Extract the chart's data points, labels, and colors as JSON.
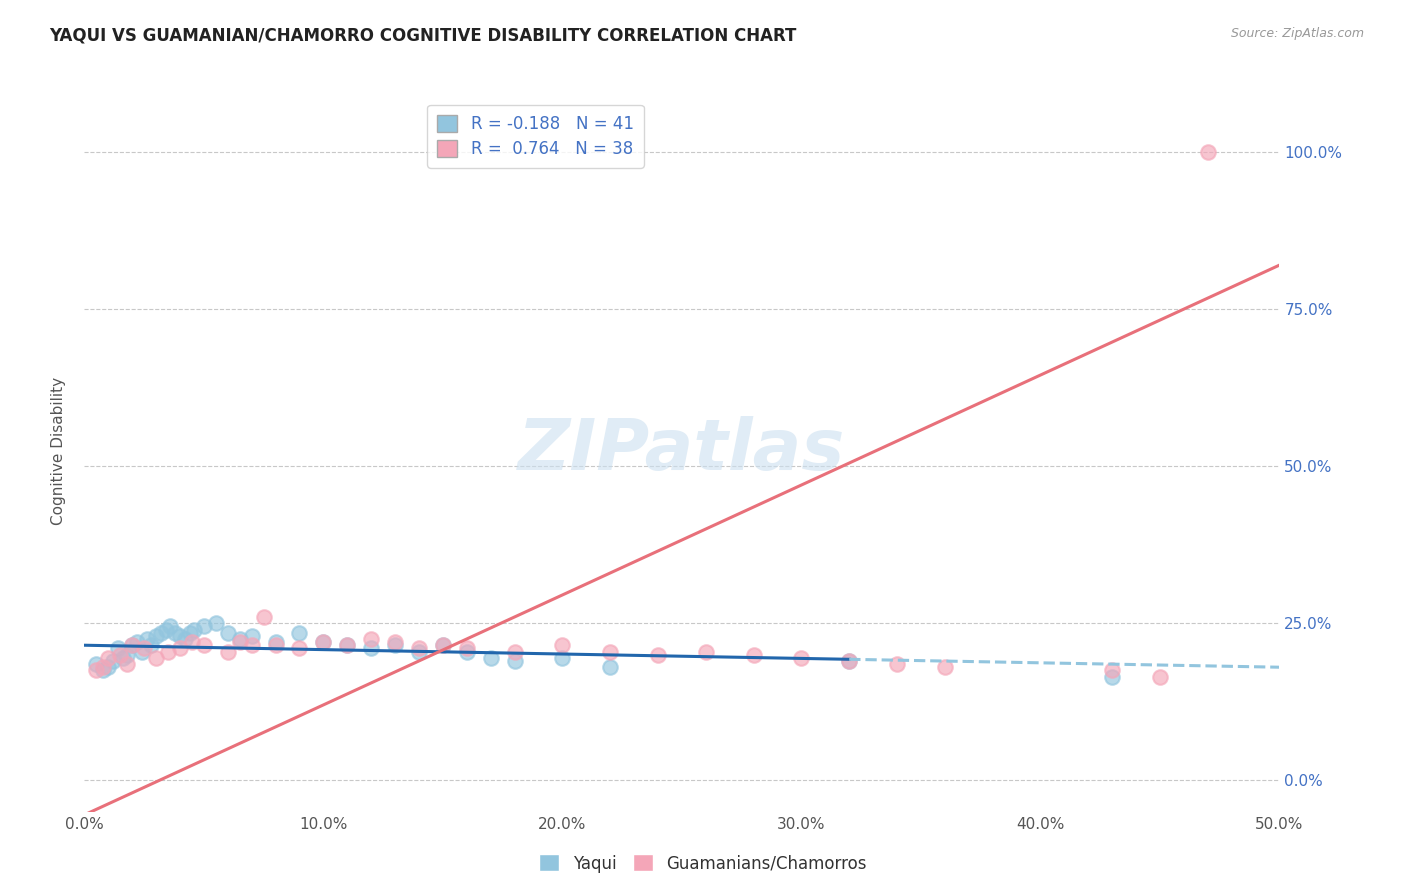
{
  "title": "YAQUI VS GUAMANIAN/CHAMORRO COGNITIVE DISABILITY CORRELATION CHART",
  "source": "Source: ZipAtlas.com",
  "ylabel": "Cognitive Disability",
  "xlim": [
    0.0,
    0.5
  ],
  "ylim": [
    -0.05,
    1.1
  ],
  "ytick_labels": [
    "0.0%",
    "25.0%",
    "50.0%",
    "75.0%",
    "100.0%"
  ],
  "ytick_values": [
    0.0,
    0.25,
    0.5,
    0.75,
    1.0
  ],
  "xtick_labels": [
    "0.0%",
    "10.0%",
    "20.0%",
    "30.0%",
    "40.0%",
    "50.0%"
  ],
  "xtick_values": [
    0.0,
    0.1,
    0.2,
    0.3,
    0.4,
    0.5
  ],
  "legend_labels": [
    "Yaqui",
    "Guamanians/Chamorros"
  ],
  "blue_color": "#92c5de",
  "pink_color": "#f4a6b8",
  "blue_line_color": "#2166ac",
  "pink_line_color": "#e8707a",
  "blue_line_dash_color": "#92c5de",
  "R_blue": -0.188,
  "N_blue": 41,
  "R_pink": 0.764,
  "N_pink": 38,
  "blue_scatter_x": [
    0.005,
    0.008,
    0.01,
    0.012,
    0.014,
    0.016,
    0.018,
    0.02,
    0.022,
    0.024,
    0.026,
    0.028,
    0.03,
    0.032,
    0.034,
    0.036,
    0.038,
    0.04,
    0.042,
    0.044,
    0.046,
    0.05,
    0.055,
    0.06,
    0.065,
    0.07,
    0.08,
    0.09,
    0.1,
    0.11,
    0.12,
    0.13,
    0.14,
    0.15,
    0.16,
    0.17,
    0.18,
    0.2,
    0.22,
    0.32,
    0.43
  ],
  "blue_scatter_y": [
    0.185,
    0.175,
    0.18,
    0.19,
    0.21,
    0.195,
    0.2,
    0.215,
    0.22,
    0.205,
    0.225,
    0.215,
    0.23,
    0.235,
    0.24,
    0.245,
    0.235,
    0.23,
    0.225,
    0.235,
    0.24,
    0.245,
    0.25,
    0.235,
    0.225,
    0.23,
    0.22,
    0.235,
    0.22,
    0.215,
    0.21,
    0.215,
    0.205,
    0.215,
    0.205,
    0.195,
    0.19,
    0.195,
    0.18,
    0.19,
    0.165
  ],
  "pink_scatter_x": [
    0.005,
    0.008,
    0.01,
    0.015,
    0.018,
    0.02,
    0.025,
    0.03,
    0.035,
    0.04,
    0.045,
    0.05,
    0.06,
    0.065,
    0.07,
    0.075,
    0.08,
    0.09,
    0.1,
    0.11,
    0.12,
    0.13,
    0.14,
    0.15,
    0.16,
    0.18,
    0.2,
    0.22,
    0.24,
    0.26,
    0.28,
    0.3,
    0.32,
    0.34,
    0.36,
    0.43,
    0.45,
    0.47
  ],
  "pink_scatter_y": [
    0.175,
    0.18,
    0.195,
    0.2,
    0.185,
    0.215,
    0.21,
    0.195,
    0.205,
    0.21,
    0.22,
    0.215,
    0.205,
    0.22,
    0.215,
    0.26,
    0.215,
    0.21,
    0.22,
    0.215,
    0.225,
    0.22,
    0.21,
    0.215,
    0.21,
    0.205,
    0.215,
    0.205,
    0.2,
    0.205,
    0.2,
    0.195,
    0.19,
    0.185,
    0.18,
    0.175,
    0.165,
    1.0
  ],
  "blue_line_x0": 0.0,
  "blue_line_x_solid_end": 0.32,
  "blue_line_x_dash_end": 0.5,
  "blue_slope": -0.07,
  "blue_intercept": 0.215,
  "pink_line_x0": 0.0,
  "pink_line_x1": 0.5,
  "pink_slope": 1.75,
  "pink_intercept": -0.055,
  "watermark": "ZIPatlas",
  "background_color": "#ffffff",
  "grid_color": "#c8c8c8"
}
